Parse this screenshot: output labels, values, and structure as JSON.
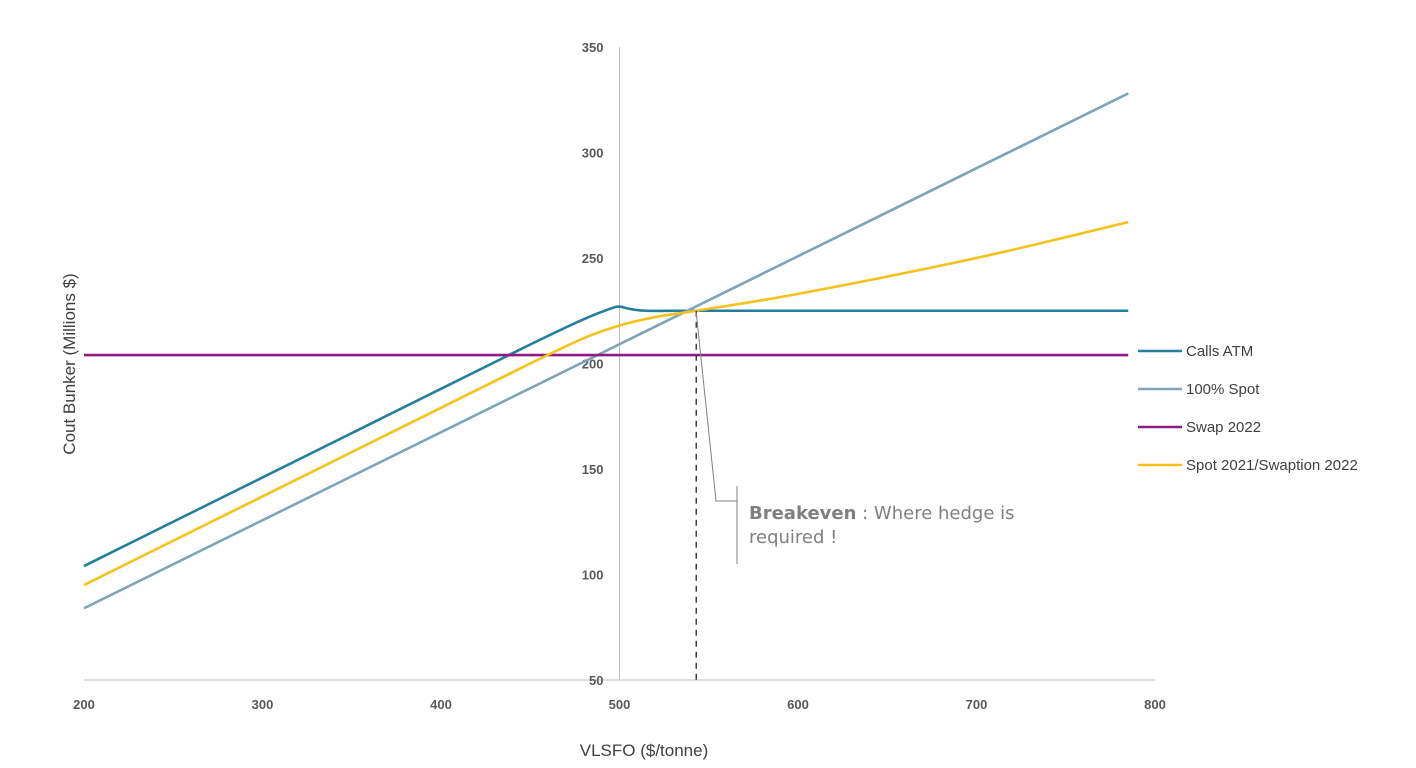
{
  "chart_data": {
    "type": "line",
    "title": "",
    "xlabel": "VLSFO ($/tonne)",
    "ylabel": "Cout Bunker (Millions $)",
    "xlim": [
      200,
      800
    ],
    "ylim": [
      50,
      350
    ],
    "x_ticks": [
      "200",
      "300",
      "400",
      "500",
      "600",
      "700",
      "800"
    ],
    "y_ticks": [
      "50",
      "100",
      "150",
      "200",
      "250",
      "300",
      "350"
    ],
    "y_axis_crosses_x_at": 500,
    "grid": false,
    "legend_position": "right",
    "series": [
      {
        "name": "Calls ATM",
        "color": "#237f9b",
        "x": [
          200,
          300,
          400,
          450,
          480,
          495,
          500,
          505,
          515,
          540,
          600,
          700,
          785
        ],
        "y": [
          104,
          146,
          188,
          209,
          221,
          226,
          227,
          226,
          225,
          225,
          225,
          225,
          225
        ]
      },
      {
        "name": "100% Spot",
        "color": "#7fa3b8",
        "x": [
          200,
          785
        ],
        "y": [
          84,
          328
        ]
      },
      {
        "name": "Swap 2022",
        "color": "#8e1a84",
        "x": [
          200,
          785
        ],
        "y": [
          204,
          204
        ]
      },
      {
        "name": "Spot 2021/Swaption 2022",
        "color": "#f5c21b",
        "x": [
          200,
          300,
          400,
          450,
          480,
          500,
          520,
          543,
          600,
          700,
          785
        ],
        "y": [
          95,
          137,
          179,
          200,
          212,
          218,
          222,
          225,
          233,
          250,
          267
        ]
      }
    ],
    "annotations": [
      {
        "label_bold": "Breakeven",
        "separator": " : ",
        "line1": "Where hedge is",
        "line2": "required !",
        "x": 543,
        "y": 225
      }
    ]
  }
}
